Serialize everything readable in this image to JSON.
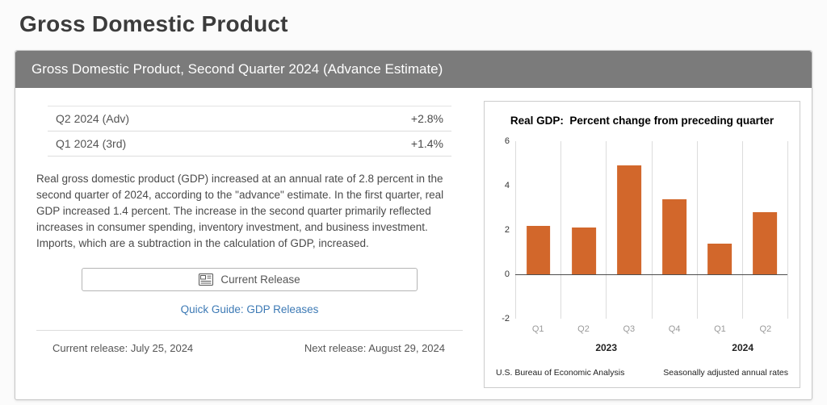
{
  "page": {
    "title": "Gross Domestic Product"
  },
  "card": {
    "header": "Gross Domestic Product, Second Quarter 2024 (Advance Estimate)",
    "stats": [
      {
        "label": "Q2 2024 (Adv)",
        "value": "+2.8%"
      },
      {
        "label": "Q1 2024 (3rd)",
        "value": "+1.4%"
      }
    ],
    "description": "Real gross domestic product (GDP) increased at an annual rate of 2.8 percent in the second quarter of 2024, according to the \"advance\" estimate. In the first quarter, real GDP increased 1.4 percent. The increase in the second quarter primarily reflected increases in consumer spending, inventory investment, and business investment. Imports, which are a subtraction in the calculation of GDP, increased.",
    "current_release_button": "Current Release",
    "quick_guide_link": "Quick Guide: GDP Releases",
    "current_release": "Current release: July 25, 2024",
    "next_release": "Next release: August 29, 2024"
  },
  "chart_data": {
    "type": "bar",
    "title": "Real GDP:  Percent change from preceding quarter",
    "categories": [
      "Q1",
      "Q2",
      "Q3",
      "Q4",
      "Q1",
      "Q2"
    ],
    "values": [
      2.2,
      2.1,
      4.9,
      3.4,
      1.4,
      2.8
    ],
    "year_groups": [
      {
        "label": "2023",
        "span": 4
      },
      {
        "label": "2024",
        "span": 2
      }
    ],
    "ylim": [
      -2,
      6
    ],
    "yticks": [
      6,
      4,
      2,
      0,
      -2
    ],
    "grid": "vertical",
    "legend": "none",
    "bar_color": "#d2672b",
    "source_left": "U.S. Bureau of Economic Analysis",
    "source_right": "Seasonally adjusted annual rates"
  },
  "colors": {
    "header_bar": "#7b7b7b",
    "bar_orange": "#d2672b",
    "link_blue": "#3d7ab5"
  }
}
